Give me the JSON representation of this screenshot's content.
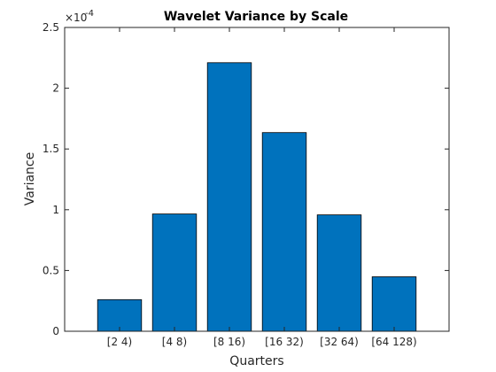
{
  "chart_data": {
    "type": "bar",
    "title": "Wavelet Variance by Scale",
    "xlabel": "Quarters",
    "ylabel": "Variance",
    "y_exponent_prefix": "×10",
    "y_exponent": "-4",
    "y_tick_labels": [
      "0",
      "0.5",
      "1",
      "1.5",
      "2",
      "2.5"
    ],
    "y_ticks": [
      0,
      0.5,
      1,
      1.5,
      2,
      2.5
    ],
    "ylim": [
      0,
      2.5
    ],
    "scale_factor": 0.0001,
    "categories": [
      "[2 4)",
      "[4 8)",
      "[8 16)",
      "[16 32)",
      "[32 64)",
      "[64 128)"
    ],
    "values": [
      2.6e-05,
      9.65e-05,
      0.000221,
      0.0001635,
      9.58e-05,
      4.48e-05
    ],
    "bar_color": "#0072BD",
    "grid": false,
    "box": true
  }
}
